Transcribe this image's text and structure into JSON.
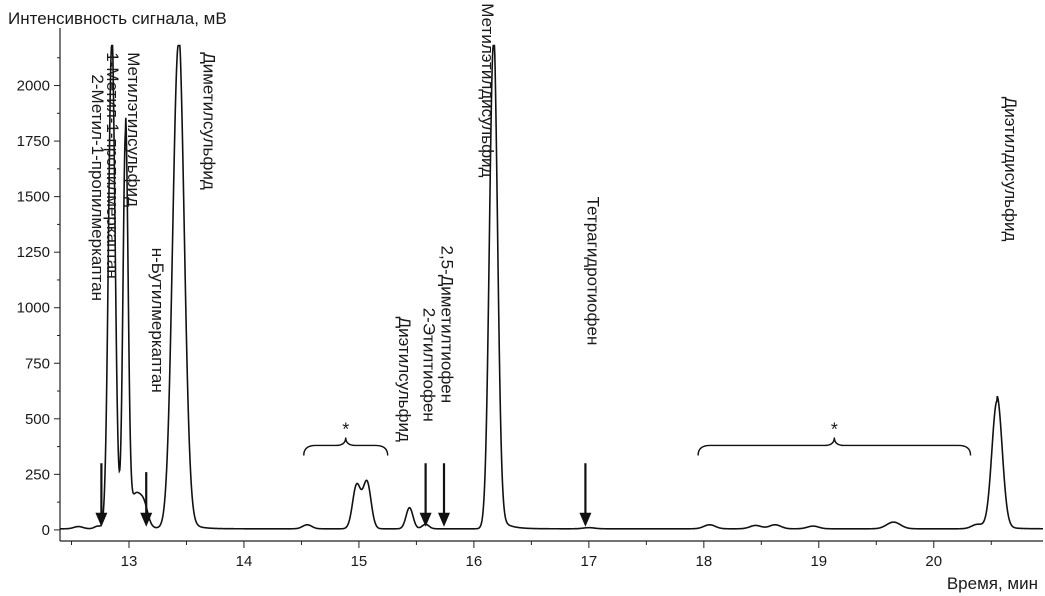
{
  "chart_data": {
    "type": "line",
    "ylabel": "Интенсивность сигнала, мВ",
    "xlabel": "Время, мин",
    "xlim": [
      12.4,
      20.95
    ],
    "ylim": [
      -50,
      2250
    ],
    "x_ticks": [
      13,
      14,
      15,
      16,
      17,
      18,
      19,
      20
    ],
    "y_ticks": [
      0,
      250,
      500,
      750,
      1000,
      1250,
      1500,
      1750,
      2000
    ],
    "grid": false,
    "baseline": 5,
    "peaks": [
      {
        "x": 12.56,
        "h": 10,
        "w": 0.04
      },
      {
        "x": 12.73,
        "h": 12,
        "w": 0.03
      },
      {
        "x": 12.85,
        "h": 2180,
        "w": 0.028
      },
      {
        "x": 12.97,
        "h": 1760,
        "w": 0.022
      },
      {
        "x": 13.06,
        "h": 120,
        "w": 0.04
      },
      {
        "x": 13.13,
        "h": 95,
        "w": 0.035
      },
      {
        "x": 13.43,
        "h": 2180,
        "w": 0.05
      },
      {
        "x": 14.55,
        "h": 18,
        "w": 0.04
      },
      {
        "x": 14.98,
        "h": 195,
        "w": 0.035
      },
      {
        "x": 15.07,
        "h": 210,
        "w": 0.035
      },
      {
        "x": 15.44,
        "h": 95,
        "w": 0.03
      },
      {
        "x": 15.58,
        "h": 20,
        "w": 0.03
      },
      {
        "x": 16.17,
        "h": 2180,
        "w": 0.035
      },
      {
        "x": 17.0,
        "h": 5,
        "w": 0.05
      },
      {
        "x": 18.05,
        "h": 18,
        "w": 0.05
      },
      {
        "x": 18.45,
        "h": 15,
        "w": 0.05
      },
      {
        "x": 18.62,
        "h": 18,
        "w": 0.05
      },
      {
        "x": 18.95,
        "h": 12,
        "w": 0.05
      },
      {
        "x": 19.65,
        "h": 30,
        "w": 0.06
      },
      {
        "x": 20.38,
        "h": 20,
        "w": 0.05
      },
      {
        "x": 20.55,
        "h": 575,
        "w": 0.045
      }
    ],
    "annotations": [
      {
        "label": "2-Метил-1-пропилмеркаптан",
        "x": 12.68,
        "y_top": 2050,
        "arrow": true,
        "arrow_x": 12.76,
        "arrow_top": 300,
        "arrow_bottom": 5
      },
      {
        "label": "1-Метил-1-пропилмеркаптан",
        "x": 12.81,
        "y_top": 2150,
        "arrow": false
      },
      {
        "label": "Метилэтилсульфид",
        "x": 12.99,
        "y_top": 2150,
        "arrow": false
      },
      {
        "label": "н-Бутилмеркаптан",
        "x": 13.2,
        "y_top": 1270,
        "arrow": true,
        "arrow_x": 13.15,
        "arrow_top": 260,
        "arrow_bottom": 5
      },
      {
        "label": "Диметилсульфид",
        "x": 13.65,
        "y_top": 2150,
        "arrow": false
      },
      {
        "label": "Диэтилсульфид",
        "x": 15.35,
        "y_top": 960,
        "arrow": false
      },
      {
        "label": "2-Этилтиофен",
        "x": 15.56,
        "y_top": 1000,
        "arrow": true,
        "arrow_x": 15.58,
        "arrow_top": 300,
        "arrow_bottom": 5
      },
      {
        "label": "2,5-Диметилтиофен",
        "x": 15.72,
        "y_top": 1280,
        "arrow": true,
        "arrow_x": 15.74,
        "arrow_top": 300,
        "arrow_bottom": 5
      },
      {
        "label": "Метилэтилдисульфид",
        "x": 16.07,
        "y_top": 2370,
        "arrow": false
      },
      {
        "label": "Тетрагидротиофен",
        "x": 16.99,
        "y_top": 1500,
        "arrow": true,
        "arrow_x": 16.97,
        "arrow_top": 300,
        "arrow_bottom": 5
      },
      {
        "label": "Диэтилдисульфид",
        "x": 20.62,
        "y_top": 1950,
        "arrow": false
      }
    ],
    "brackets": [
      {
        "label": "*",
        "x_start": 14.52,
        "x_end": 15.25,
        "y": 380
      },
      {
        "label": "*",
        "x_start": 17.95,
        "x_end": 20.32,
        "y": 380
      }
    ]
  }
}
